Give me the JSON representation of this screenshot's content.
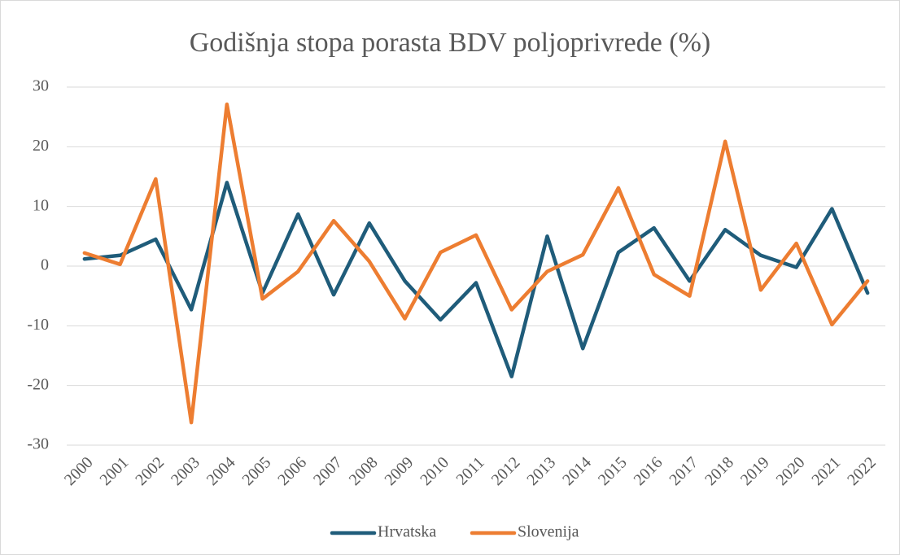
{
  "chart_data": {
    "type": "line",
    "title": "Godišnja stopa porasta BDV poljoprivrede (%)",
    "categories": [
      "2000",
      "2001",
      "2002",
      "2003",
      "2004",
      "2005",
      "2006",
      "2007",
      "2008",
      "2009",
      "2010",
      "2011",
      "2012",
      "2013",
      "2014",
      "2015",
      "2016",
      "2017",
      "2018",
      "2019",
      "2020",
      "2021",
      "2022"
    ],
    "series": [
      {
        "name": "Hrvatska",
        "color": "#1f5c7a",
        "values": [
          1.2,
          1.8,
          4.5,
          -7.3,
          14.0,
          -4.5,
          8.7,
          -4.8,
          7.2,
          -2.5,
          -9.0,
          -2.8,
          -18.5,
          5.0,
          -13.8,
          2.3,
          6.4,
          -2.5,
          6.1,
          1.8,
          -0.2,
          9.6,
          -4.5
        ]
      },
      {
        "name": "Slovenija",
        "color": "#ed7d31",
        "values": [
          2.2,
          0.3,
          14.6,
          -26.2,
          27.1,
          -5.5,
          -0.9,
          7.6,
          0.8,
          -8.8,
          2.3,
          5.2,
          -7.3,
          -0.9,
          1.9,
          13.1,
          -1.4,
          -5.0,
          20.9,
          -4.0,
          3.8,
          -9.8,
          -2.5
        ]
      }
    ],
    "ylim": [
      -30,
      30
    ],
    "yticks": [
      -30,
      -20,
      -10,
      0,
      10,
      20,
      30
    ],
    "grid": true,
    "legend": "bottom"
  }
}
